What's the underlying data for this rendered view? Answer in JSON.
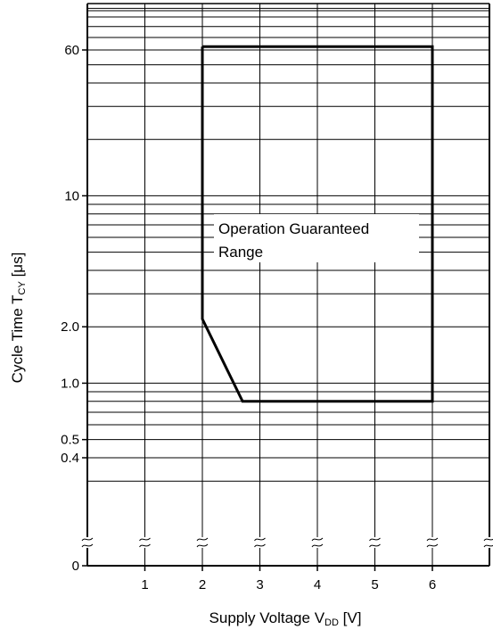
{
  "chart_data": {
    "type": "line",
    "title": "",
    "xlabel": {
      "main": "Supply Voltage V",
      "sub": "DD",
      "unit": " [V]"
    },
    "ylabel": {
      "main": "Cycle Time T",
      "sub": "CY",
      "unit": " [μs]"
    },
    "x_ticks": [
      "1",
      "2",
      "3",
      "4",
      "5",
      "6"
    ],
    "y_ticks": [
      "60",
      "10",
      "2.0",
      "1.0",
      "0.5",
      "0.4",
      "0"
    ],
    "xlim": [
      0,
      7
    ],
    "y_scale": "log (broken axis below 0.4, with 0 at the bottom)",
    "grid": true,
    "annotation_line1": "Operation Guaranteed",
    "annotation_line2": "Range",
    "series": [
      {
        "points": [
          {
            "x": 2.0,
            "y": 62.5
          },
          {
            "x": 6.0,
            "y": 62.5
          },
          {
            "x": 6.0,
            "y": 0.8
          },
          {
            "x": 2.7,
            "y": 0.8
          },
          {
            "x": 2.0,
            "y": 2.2
          },
          {
            "x": 2.0,
            "y": 62.5
          }
        ]
      }
    ]
  }
}
